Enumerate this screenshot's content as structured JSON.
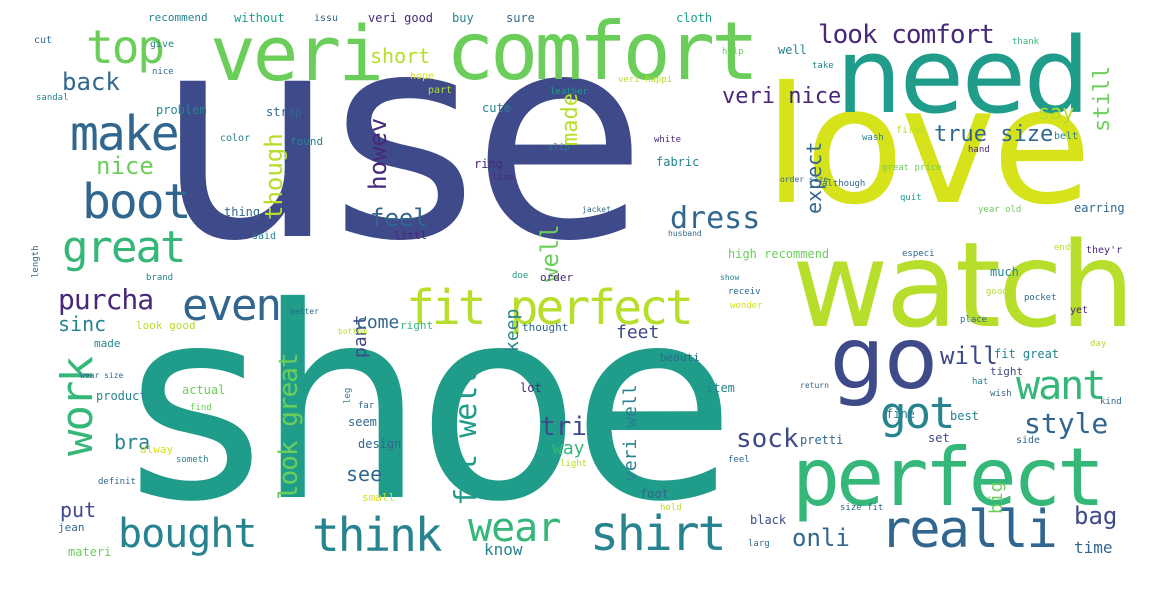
{
  "palette": {
    "background": "#ffffff",
    "purple": "#482979",
    "indigo": "#3f4a8a",
    "blue": "#31678e",
    "teal": "#26838f",
    "seagreen": "#1f9d8a",
    "green": "#35b779",
    "lightgreen": "#6cce5a",
    "lime": "#b6de2b",
    "yellow": "#d6e21a"
  },
  "words": [
    {
      "text": "use"
    },
    {
      "text": "shoe"
    },
    {
      "text": "love"
    },
    {
      "text": "need"
    },
    {
      "text": "watch"
    },
    {
      "text": "comfort"
    },
    {
      "text": "veri"
    },
    {
      "text": "perfect"
    },
    {
      "text": "go"
    },
    {
      "text": "realli"
    },
    {
      "text": "shirt"
    },
    {
      "text": "think"
    },
    {
      "text": "bought"
    },
    {
      "text": "wear"
    },
    {
      "text": "fit perfect"
    },
    {
      "text": "make"
    },
    {
      "text": "boot"
    },
    {
      "text": "great"
    },
    {
      "text": "top"
    },
    {
      "text": "even"
    },
    {
      "text": "work"
    },
    {
      "text": "got"
    },
    {
      "text": "want"
    },
    {
      "text": "dress"
    },
    {
      "text": "purcha"
    },
    {
      "text": "look comfort"
    },
    {
      "text": "fit well"
    },
    {
      "text": "look great"
    },
    {
      "text": "style"
    },
    {
      "text": "sock"
    },
    {
      "text": "tri"
    },
    {
      "text": "onli"
    },
    {
      "text": "bag"
    },
    {
      "text": "back"
    },
    {
      "text": "nice"
    },
    {
      "text": "feel"
    },
    {
      "text": "will"
    },
    {
      "text": "veri nice"
    },
    {
      "text": "true size"
    },
    {
      "text": "though"
    },
    {
      "text": "howev"
    },
    {
      "text": "made"
    },
    {
      "text": "well"
    },
    {
      "text": "sinc"
    },
    {
      "text": "bra"
    },
    {
      "text": "see"
    },
    {
      "text": "put"
    },
    {
      "text": "short"
    },
    {
      "text": "expect"
    },
    {
      "text": "still"
    },
    {
      "text": "say"
    },
    {
      "text": "pant"
    },
    {
      "text": "come"
    },
    {
      "text": "keep"
    },
    {
      "text": "feet"
    },
    {
      "text": "way"
    },
    {
      "text": "veri well"
    },
    {
      "text": "big"
    },
    {
      "text": "time"
    },
    {
      "text": "know"
    },
    {
      "text": "recommend"
    },
    {
      "text": "without"
    },
    {
      "text": "issu"
    },
    {
      "text": "veri good"
    },
    {
      "text": "buy"
    },
    {
      "text": "sure"
    },
    {
      "text": "cloth"
    },
    {
      "text": "cut"
    },
    {
      "text": "give"
    },
    {
      "text": "help"
    },
    {
      "text": "well"
    },
    {
      "text": "thank"
    },
    {
      "text": "take"
    },
    {
      "text": "hope"
    },
    {
      "text": "part"
    },
    {
      "text": "leather"
    },
    {
      "text": "cute"
    },
    {
      "text": "veri happi"
    },
    {
      "text": "problem"
    },
    {
      "text": "strap"
    },
    {
      "text": "sandal"
    },
    {
      "text": "ring"
    },
    {
      "text": "white"
    },
    {
      "text": "slip"
    },
    {
      "text": "fabric"
    },
    {
      "text": "line"
    },
    {
      "text": "color"
    },
    {
      "text": "thing"
    },
    {
      "text": "found"
    },
    {
      "text": "littl"
    },
    {
      "text": "said"
    },
    {
      "text": "husband"
    },
    {
      "text": "jacket"
    },
    {
      "text": "first"
    },
    {
      "text": "wash"
    },
    {
      "text": "belt"
    },
    {
      "text": "hand"
    },
    {
      "text": "quit"
    },
    {
      "text": "earring"
    },
    {
      "text": "although"
    },
    {
      "text": "great price"
    },
    {
      "text": "order size"
    },
    {
      "text": "year old"
    },
    {
      "text": "look good"
    },
    {
      "text": "high recommend"
    },
    {
      "text": "especi"
    },
    {
      "text": "much"
    },
    {
      "text": "end"
    },
    {
      "text": "they'r"
    },
    {
      "text": "brand"
    },
    {
      "text": "order"
    },
    {
      "text": "doe"
    },
    {
      "text": "show"
    },
    {
      "text": "receiv"
    },
    {
      "text": "wonder"
    },
    {
      "text": "good"
    },
    {
      "text": "pocket"
    },
    {
      "text": "yet"
    },
    {
      "text": "right"
    },
    {
      "text": "thought"
    },
    {
      "text": "beauti"
    },
    {
      "text": "bottom"
    },
    {
      "text": "better"
    },
    {
      "text": "place"
    },
    {
      "text": "day"
    },
    {
      "text": "made"
    },
    {
      "text": "fit great"
    },
    {
      "text": "return"
    },
    {
      "text": "hat"
    },
    {
      "text": "wish"
    },
    {
      "text": "tight"
    },
    {
      "text": "actual"
    },
    {
      "text": "product"
    },
    {
      "text": "wear size"
    },
    {
      "text": "find"
    },
    {
      "text": "lot"
    },
    {
      "text": "item"
    },
    {
      "text": "far"
    },
    {
      "text": "seem"
    },
    {
      "text": "design"
    },
    {
      "text": "fine"
    },
    {
      "text": "best"
    },
    {
      "text": "kind"
    },
    {
      "text": "pretti"
    },
    {
      "text": "set"
    },
    {
      "text": "side"
    },
    {
      "text": "alway"
    },
    {
      "text": "someth"
    },
    {
      "text": "light"
    },
    {
      "text": "feel"
    },
    {
      "text": "definit"
    },
    {
      "text": "small"
    },
    {
      "text": "foot"
    },
    {
      "text": "hold"
    },
    {
      "text": "black"
    },
    {
      "text": "size fit"
    },
    {
      "text": "jean"
    },
    {
      "text": "materi"
    },
    {
      "text": "larg"
    },
    {
      "text": "nice"
    },
    {
      "text": "leg"
    },
    {
      "text": "length"
    }
  ]
}
